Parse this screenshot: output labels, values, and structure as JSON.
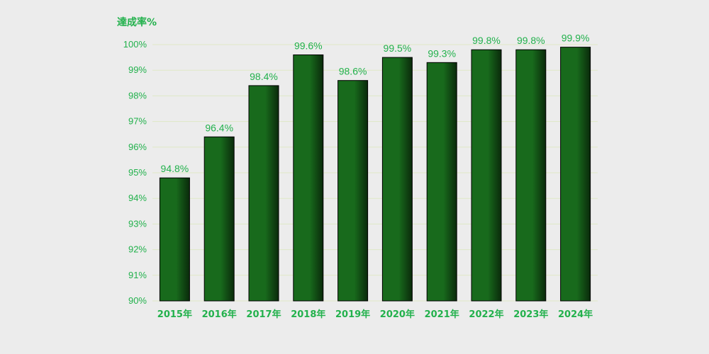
{
  "colors": {
    "background": "#ececec",
    "text": "#22b14c",
    "bar": "#186a1c",
    "bar_dark": "#0a2a0b",
    "grid": "#dfe8c6"
  },
  "chart_data": {
    "type": "bar",
    "ylabel": "達成率%",
    "categories": [
      "2015年",
      "2016年",
      "2017年",
      "2018年",
      "2019年",
      "2020年",
      "2021年",
      "2022年",
      "2023年",
      "2024年"
    ],
    "values": [
      94.8,
      96.4,
      98.4,
      99.6,
      98.6,
      99.5,
      99.3,
      99.8,
      99.8,
      99.9
    ],
    "data_labels": [
      "94.8%",
      "96.4%",
      "98.4%",
      "99.6%",
      "98.6%",
      "99.5%",
      "99.3%",
      "99.8%",
      "99.8%",
      "99.9%"
    ],
    "yticks": [
      "90%",
      "91%",
      "92%",
      "93%",
      "94%",
      "95%",
      "96%",
      "97%",
      "98%",
      "99%",
      "100%"
    ],
    "ylim": [
      90,
      100
    ],
    "grid": true
  }
}
